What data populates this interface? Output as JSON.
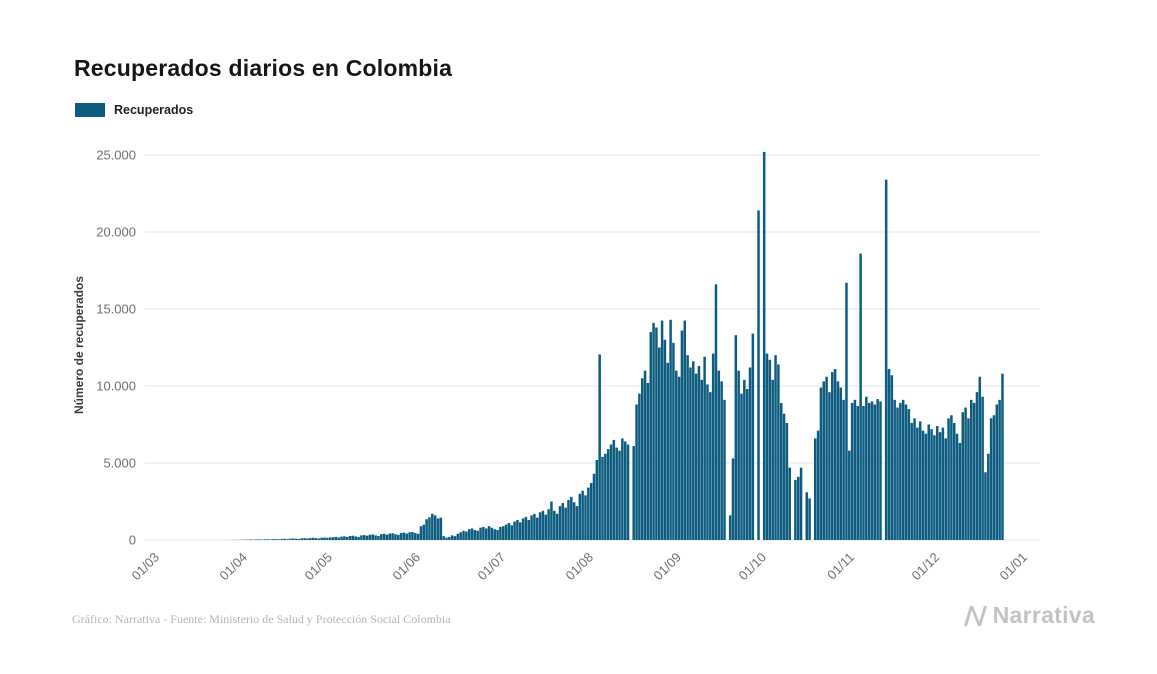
{
  "title": "Recuperados diarios en Colombia",
  "legend": {
    "label": "Recuperados",
    "color": "#0d5c80"
  },
  "y_axis_label": "Número de recuperados",
  "footer": {
    "credit": "Gráfico: Narrativa - Fuente: Ministerio de Salud y Protección Social Colombia",
    "logo_text": "Narrativa"
  },
  "chart_data": {
    "type": "bar",
    "title": "Recuperados diarios en Colombia",
    "xlabel": "",
    "ylabel": "Número de recuperados",
    "ylim": [
      0,
      25000
    ],
    "grid": true,
    "legend_position": "top-left",
    "y_ticks": [
      0,
      5000,
      10000,
      15000,
      20000,
      25000
    ],
    "y_tick_labels": [
      "0",
      "5.000",
      "10.000",
      "15.000",
      "20.000",
      "25.000"
    ],
    "x_tick_labels": [
      "01/03",
      "01/04",
      "01/05",
      "01/06",
      "01/07",
      "01/08",
      "01/09",
      "01/10",
      "01/11",
      "01/12",
      "01/01"
    ],
    "x_tick_day_offsets": [
      0,
      31,
      61,
      92,
      122,
      153,
      184,
      214,
      245,
      275,
      306
    ],
    "x_start": "01/03",
    "frequency": "daily",
    "series": [
      {
        "name": "Recuperados",
        "color": "#0d5c80",
        "values": [
          0,
          0,
          0,
          0,
          0,
          0,
          0,
          0,
          0,
          0,
          0,
          0,
          0,
          0,
          0,
          0,
          0,
          0,
          0,
          0,
          0,
          0,
          0,
          0,
          0,
          5,
          8,
          10,
          12,
          15,
          20,
          25,
          30,
          20,
          35,
          40,
          30,
          45,
          50,
          40,
          60,
          55,
          45,
          70,
          80,
          60,
          90,
          100,
          80,
          70,
          110,
          120,
          100,
          130,
          140,
          120,
          100,
          150,
          160,
          140,
          170,
          180,
          200,
          160,
          220,
          240,
          200,
          260,
          280,
          230,
          200,
          300,
          320,
          280,
          340,
          360,
          300,
          260,
          380,
          400,
          350,
          420,
          440,
          380,
          330,
          460,
          480,
          420,
          500,
          520,
          450,
          400,
          900,
          1000,
          1350,
          1475,
          1700,
          1600,
          1400,
          1450,
          250,
          150,
          200,
          300,
          250,
          400,
          500,
          600,
          550,
          700,
          750,
          650,
          600,
          800,
          850,
          750,
          900,
          800,
          700,
          650,
          850,
          900,
          1000,
          1100,
          950,
          1200,
          1300,
          1150,
          1400,
          1500,
          1300,
          1600,
          1700,
          1450,
          1800,
          1900,
          1650,
          2000,
          2500,
          1900,
          1700,
          2200,
          2400,
          2100,
          2600,
          2800,
          2450,
          2200,
          3000,
          3200,
          2900,
          3400,
          3700,
          4300,
          5200,
          12050,
          5400,
          5600,
          5900,
          6200,
          6500,
          6000,
          5800,
          6600,
          6400,
          6200,
          0,
          6100,
          8800,
          9500,
          10500,
          11000,
          10200,
          13500,
          14100,
          13800,
          12500,
          14250,
          13000,
          11500,
          14300,
          12800,
          11000,
          10600,
          13600,
          14250,
          12000,
          11200,
          11600,
          10800,
          11300,
          10400,
          11900,
          10100,
          9600,
          12100,
          16600,
          11000,
          10300,
          9100,
          0,
          1600,
          5300,
          13300,
          11000,
          9500,
          10400,
          9800,
          11200,
          13400,
          0,
          21400,
          0,
          25200,
          12100,
          11700,
          10400,
          12000,
          11400,
          8900,
          8200,
          7600,
          4700,
          0,
          3900,
          4100,
          4700,
          0,
          3100,
          2700,
          0,
          6600,
          7100,
          9900,
          10300,
          10600,
          9600,
          10900,
          11100,
          10300,
          9900,
          9100,
          16700,
          5800,
          8900,
          9100,
          8700,
          18600,
          8700,
          9300,
          8900,
          9000,
          8800,
          9150,
          9000,
          0,
          23400,
          11100,
          10700,
          9100,
          8600,
          8900,
          9100,
          8800,
          8500,
          7600,
          7900,
          7300,
          7700,
          7100,
          6900,
          7500,
          7200,
          6800,
          7400,
          7000,
          7300,
          6600,
          7900,
          8100,
          7600,
          6900,
          6300,
          8300,
          8600,
          7900,
          9100,
          8900,
          9600,
          10600,
          9300,
          4400,
          5600,
          7900,
          8100,
          8800,
          9100,
          10800
        ]
      }
    ]
  }
}
